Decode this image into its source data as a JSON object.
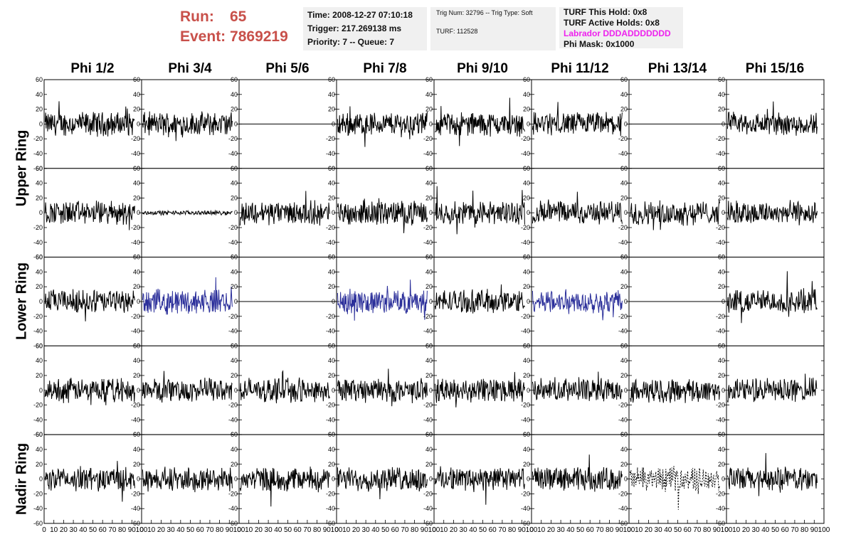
{
  "header": {
    "run_label": "Run:",
    "run_value": "65",
    "event_label": "Event:",
    "event_value": "7869219"
  },
  "info_box_1": {
    "time": "Time: 2008-12-27 07:10:18",
    "trigger": "Trigger: 217.269138 ms",
    "priority": "Priority: 7 -- Queue: 7"
  },
  "info_box_2": {
    "trig": "Trig Num: 32796 -- Trig Type: Soft",
    "turf": "TURF: 112528"
  },
  "info_box_3": {
    "this_hold": "TURF This Hold: 0x8",
    "active_holds": "TURF Active Holds: 0x8",
    "labrador": "Labrador DDDADDDDDDD",
    "phi_mask": "Phi Mask: 0x1000"
  },
  "colors": {
    "run_text": "#c8504a",
    "labrador_text": "#ee22ee",
    "trace_normal": "#000000",
    "trace_masked": "#2b2f9a",
    "info_bg": "#f0f0f0"
  },
  "phi_columns": [
    "Phi 1/2",
    "Phi 3/4",
    "Phi 5/6",
    "Phi 7/8",
    "Phi 9/10",
    "Phi 11/12",
    "Phi 13/14",
    "Phi 15/16"
  ],
  "rings": [
    "Upper Ring",
    "Lower Ring",
    "Nadir Ring"
  ],
  "chart_data": {
    "type": "line",
    "title": "",
    "xlabel": "",
    "ylabel": "",
    "xlim": [
      0,
      100
    ],
    "ylim": [
      -60,
      60
    ],
    "x_ticks": [
      "0",
      "10",
      "20",
      "30",
      "40",
      "50",
      "60",
      "70",
      "80",
      "90",
      "100"
    ],
    "y_ticks": [
      "60",
      "40",
      "20",
      "0",
      "-20",
      "-40",
      "-60"
    ],
    "grid": false,
    "rows": 5,
    "cols": 8,
    "panels": [
      [
        "noise",
        "noise",
        "flat",
        "noise",
        "noise",
        "noise",
        "flat",
        "noise"
      ],
      [
        "noise",
        "small",
        "noise",
        "noise",
        "noise",
        "noise",
        "noise",
        "noise"
      ],
      [
        "noise",
        "blue",
        "flat",
        "blue",
        "noise",
        "blue",
        "flat",
        "noise"
      ],
      [
        "noise",
        "noise",
        "noise",
        "noise",
        "noise",
        "noise",
        "noise",
        "noise"
      ],
      [
        "noise",
        "noise",
        "noise",
        "noise",
        "noise",
        "noise",
        "dashed",
        "noise"
      ]
    ]
  }
}
